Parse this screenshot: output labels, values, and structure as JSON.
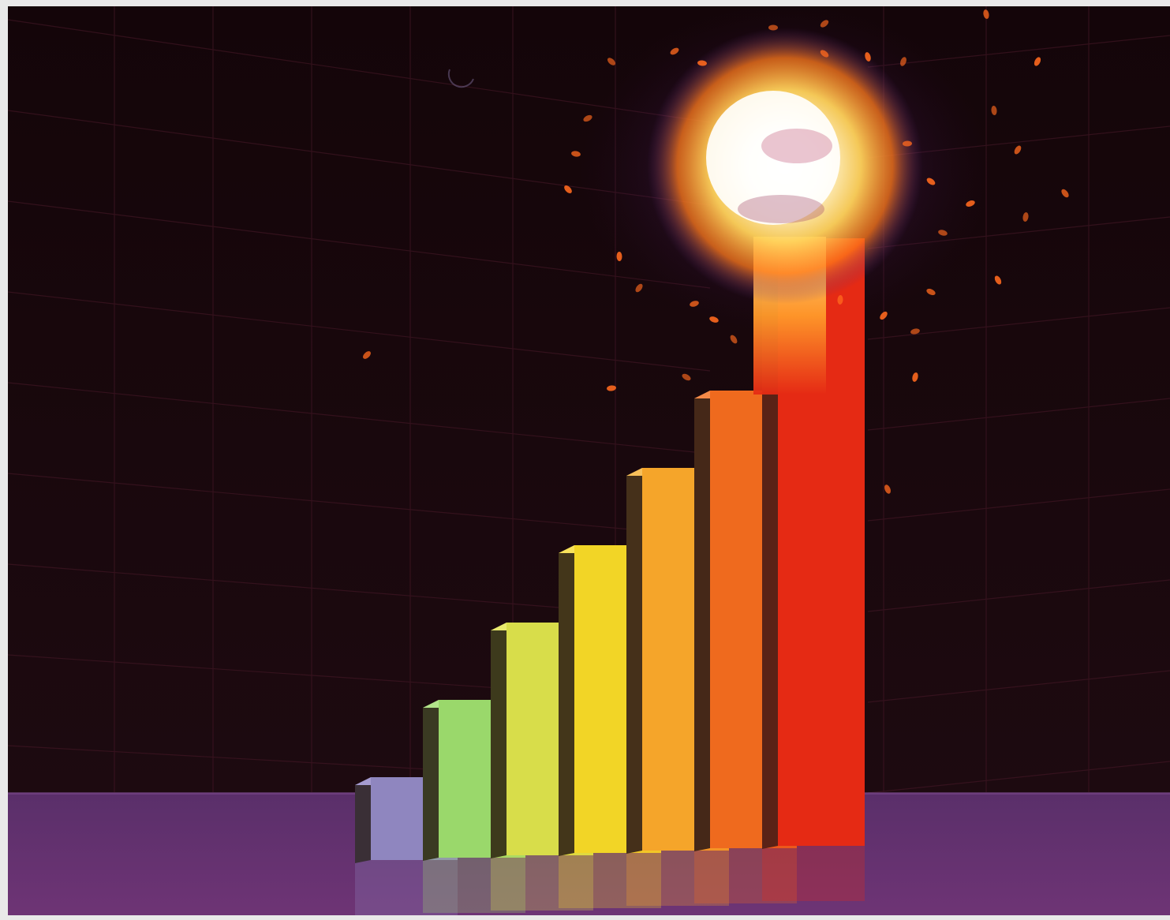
{
  "colors": {
    "frame": "#e9e9e9",
    "sky_top": "#140509",
    "sky_bottom": "#1d0a10",
    "grid_line": "#4a1a2a",
    "floor_far": "#5a2f6a",
    "floor_near": "#6e3475",
    "flash_core": "#ffffff",
    "flash_mid": "#ffd25a",
    "flash_outer": "#ff7a1a",
    "flash_halo": "#5a2a80",
    "spark": "#ff6a1e"
  },
  "bars": [
    {
      "name": "bar-1",
      "level": 1,
      "front": "#8f86bf",
      "side": "#3a2f36",
      "top": "#a59bd0"
    },
    {
      "name": "bar-2",
      "level": 2,
      "front": "#9ad86b",
      "side": "#3a3a22",
      "top": "#b3e58a"
    },
    {
      "name": "bar-3",
      "level": 3,
      "front": "#d8dd4a",
      "side": "#3d3a1c",
      "top": "#e9ea6e"
    },
    {
      "name": "bar-4",
      "level": 4,
      "front": "#f2d526",
      "side": "#43361a",
      "top": "#f8e25a"
    },
    {
      "name": "bar-5",
      "level": 5,
      "front": "#f5a52a",
      "side": "#45301a",
      "top": "#f8c05a"
    },
    {
      "name": "bar-6",
      "level": 6,
      "front": "#ef6a1e",
      "side": "#452818",
      "top": "#f58a48"
    },
    {
      "name": "bar-7",
      "level": 8,
      "front": "#e52a14",
      "side": "#5a2216",
      "top": "#ff9a3a"
    }
  ],
  "icons": {
    "explosion": "explosion-burst-icon"
  }
}
